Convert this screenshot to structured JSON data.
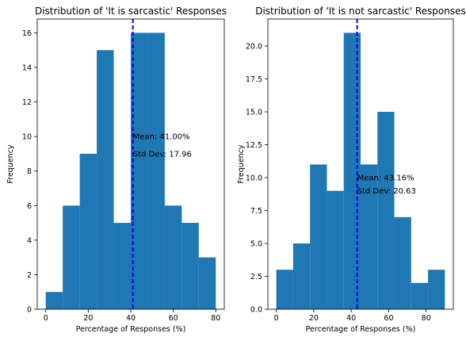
{
  "chart_data": [
    {
      "type": "bar",
      "title": "Distribution of 'It is sarcastic' Responses",
      "xlabel": "Percentage of Responses (%)",
      "ylabel": "Frequency",
      "xlim": [
        -4,
        84
      ],
      "ylim": [
        0,
        16.8
      ],
      "x_ticks": [
        0,
        20,
        40,
        60,
        80
      ],
      "x_tick_labels": [
        "0",
        "20",
        "40",
        "60",
        "80"
      ],
      "y_ticks": [
        0,
        2,
        4,
        6,
        8,
        10,
        12,
        14,
        16
      ],
      "y_tick_labels": [
        "0",
        "2",
        "4",
        "6",
        "8",
        "10",
        "12",
        "14",
        "16"
      ],
      "bins": [
        {
          "start": 0,
          "end": 8,
          "count": 1
        },
        {
          "start": 8,
          "end": 16,
          "count": 6
        },
        {
          "start": 16,
          "end": 24,
          "count": 9
        },
        {
          "start": 24,
          "end": 32,
          "count": 15
        },
        {
          "start": 32,
          "end": 40,
          "count": 5
        },
        {
          "start": 40,
          "end": 48,
          "count": 16
        },
        {
          "start": 48,
          "end": 56,
          "count": 16
        },
        {
          "start": 56,
          "end": 64,
          "count": 6
        },
        {
          "start": 64,
          "end": 72,
          "count": 5
        },
        {
          "start": 72,
          "end": 80,
          "count": 3
        }
      ],
      "mean": 41.0,
      "annotations": [
        "Mean: 41.00%",
        "Std Dev: 17.96"
      ],
      "annotation_y": [
        10,
        9
      ],
      "grid": false,
      "colors": {
        "bars": "#1f77b4",
        "mean_line": "#0000ff"
      }
    },
    {
      "type": "bar",
      "title": "Distribution of 'It is not sarcastic' Responses",
      "xlabel": "Percentage of Responses (%)",
      "ylabel": "Frequency",
      "xlim": [
        -4.5,
        94.5
      ],
      "ylim": [
        0,
        22.05
      ],
      "x_ticks": [
        0,
        20,
        40,
        60,
        80
      ],
      "x_tick_labels": [
        "0",
        "20",
        "40",
        "60",
        "80"
      ],
      "y_ticks": [
        0,
        2.5,
        5,
        7.5,
        10,
        12.5,
        15,
        17.5,
        20
      ],
      "y_tick_labels": [
        "0.0",
        "2.5",
        "5.0",
        "7.5",
        "10.0",
        "12.5",
        "15.0",
        "17.5",
        "20.0"
      ],
      "bins": [
        {
          "start": 0,
          "end": 9,
          "count": 3
        },
        {
          "start": 9,
          "end": 18,
          "count": 5
        },
        {
          "start": 18,
          "end": 27,
          "count": 11
        },
        {
          "start": 27,
          "end": 36,
          "count": 9
        },
        {
          "start": 36,
          "end": 45,
          "count": 21
        },
        {
          "start": 45,
          "end": 54,
          "count": 11
        },
        {
          "start": 54,
          "end": 63,
          "count": 15
        },
        {
          "start": 63,
          "end": 72,
          "count": 7
        },
        {
          "start": 72,
          "end": 81,
          "count": 2
        },
        {
          "start": 81,
          "end": 90,
          "count": 3
        }
      ],
      "mean": 43.16,
      "annotations": [
        "Mean: 43.16%",
        "Std Dev: 20.63"
      ],
      "annotation_y": [
        10,
        9
      ],
      "grid": false,
      "colors": {
        "bars": "#1f77b4",
        "mean_line": "#0000ff"
      }
    }
  ]
}
